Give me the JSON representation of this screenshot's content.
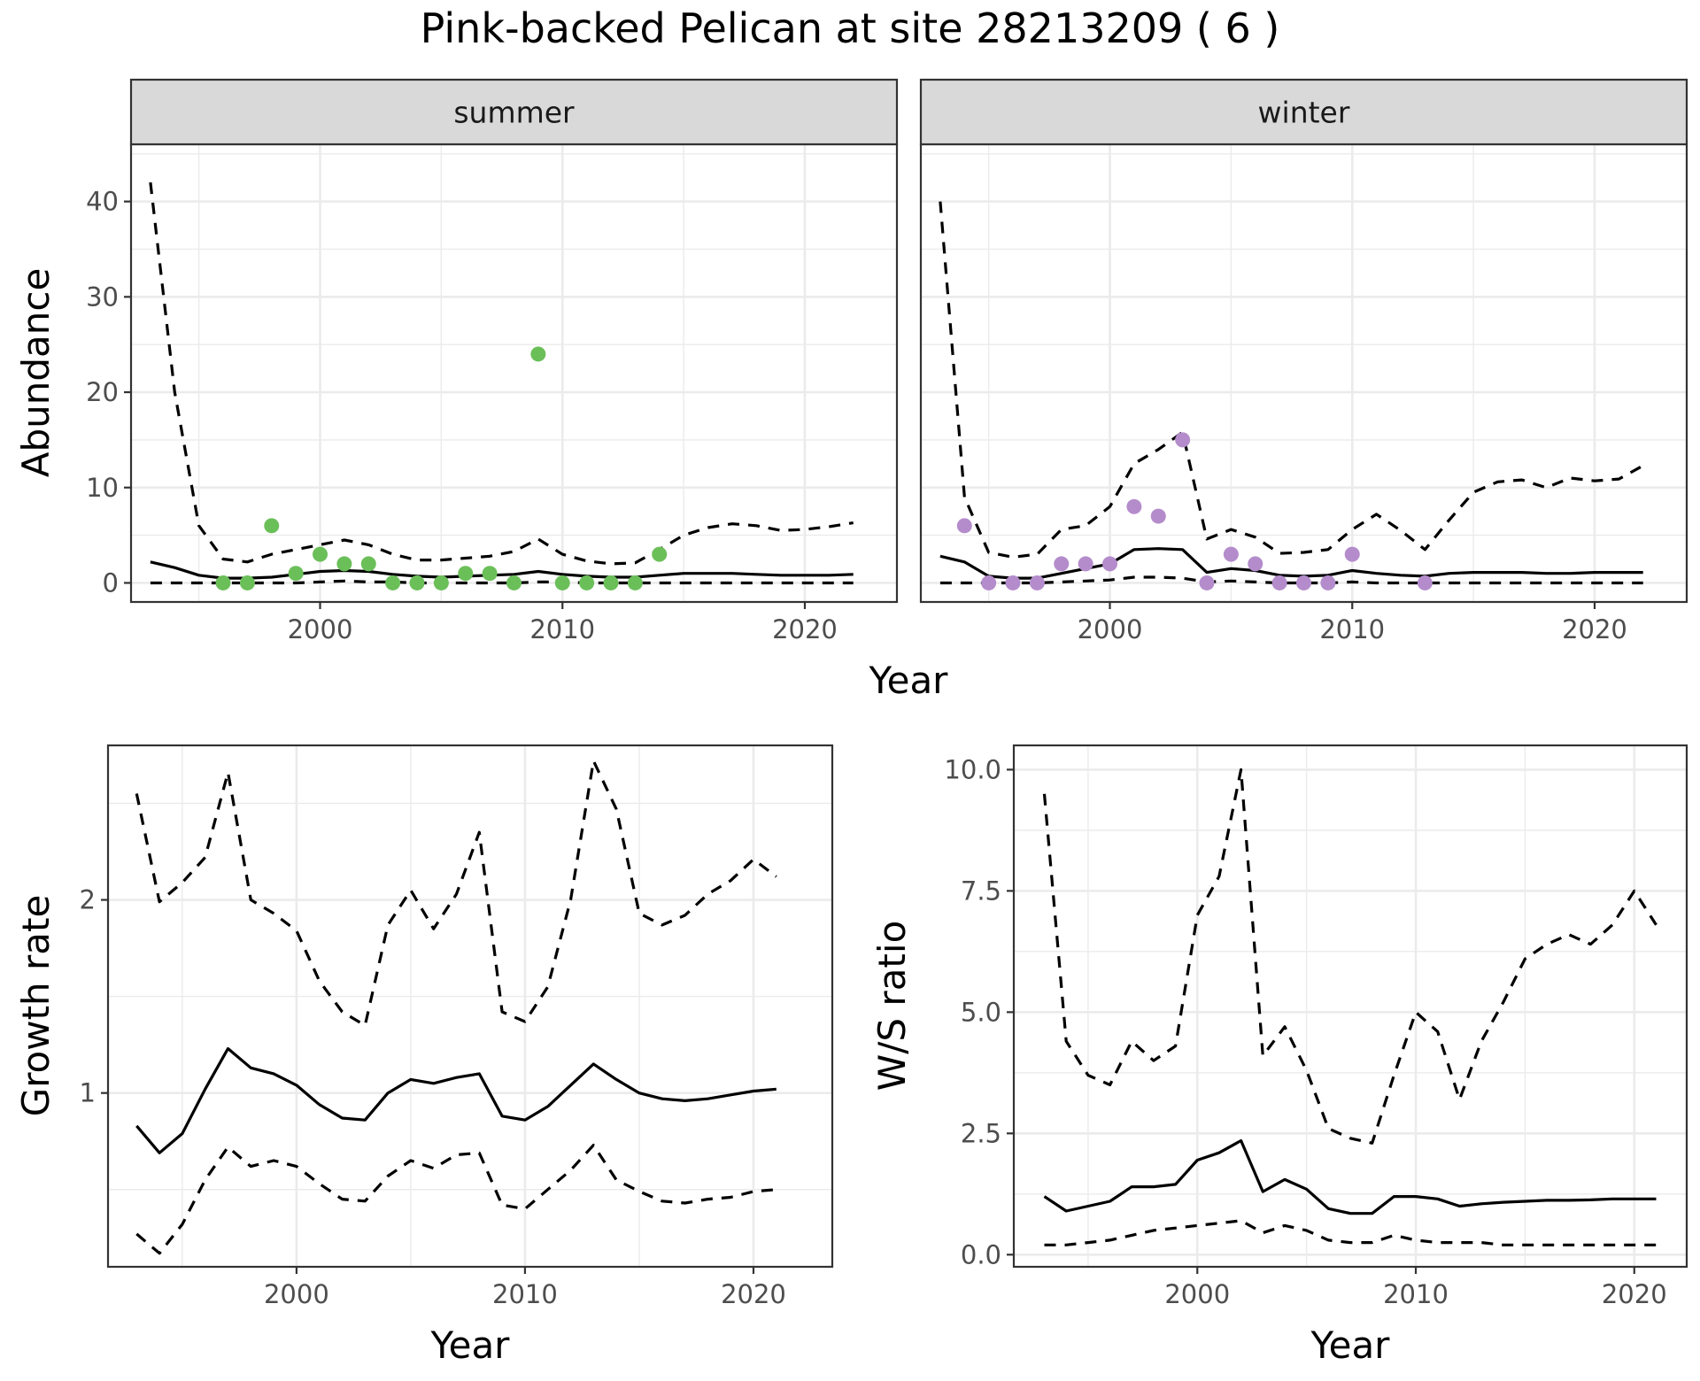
{
  "title": "Pink-backed Pelican at site 28213209 ( 6 )",
  "colors": {
    "summer": "#6bbf59",
    "winter": "#b48ccb"
  },
  "chart_data": [
    {
      "id": "summer",
      "type": "line",
      "strip": "summer",
      "xlabel": "Year",
      "ylabel": "Abundance",
      "xlim": [
        1992.2,
        2023.8
      ],
      "ylim": [
        -2,
        46
      ],
      "xticks": [
        2000,
        2010,
        2020
      ],
      "yticks": [
        0,
        10,
        20,
        30,
        40
      ],
      "x": [
        1993,
        1994,
        1995,
        1996,
        1997,
        1998,
        1999,
        2000,
        2001,
        2002,
        2003,
        2004,
        2005,
        2006,
        2007,
        2008,
        2009,
        2010,
        2011,
        2012,
        2013,
        2014,
        2015,
        2016,
        2017,
        2018,
        2019,
        2020,
        2021,
        2022
      ],
      "series": [
        {
          "role": "estimate",
          "style": "solid",
          "values": [
            2.2,
            1.6,
            0.8,
            0.5,
            0.5,
            0.6,
            0.9,
            1.2,
            1.3,
            1.2,
            0.9,
            0.7,
            0.6,
            0.7,
            0.8,
            0.9,
            1.2,
            0.9,
            0.7,
            0.6,
            0.6,
            0.8,
            1.0,
            1.0,
            1.0,
            0.9,
            0.8,
            0.8,
            0.8,
            0.9
          ]
        },
        {
          "role": "upper",
          "style": "dashed",
          "values": [
            42,
            20,
            6,
            2.5,
            2.2,
            3.0,
            3.5,
            4.0,
            4.5,
            4.0,
            3.0,
            2.4,
            2.4,
            2.6,
            2.8,
            3.3,
            4.6,
            3.0,
            2.3,
            2.0,
            2.1,
            3.5,
            5.0,
            5.8,
            6.2,
            6.0,
            5.5,
            5.6,
            5.9,
            6.3
          ]
        },
        {
          "role": "lower",
          "style": "dashed",
          "values": [
            0,
            0,
            0,
            0,
            0,
            0,
            0,
            0.1,
            0.2,
            0.1,
            0.1,
            0,
            0,
            0,
            0,
            0,
            0.1,
            0.1,
            0,
            0,
            0,
            0,
            0,
            0,
            0,
            0,
            0,
            0,
            0,
            0
          ]
        }
      ],
      "points": {
        "x": [
          1996,
          1997,
          1998,
          1999,
          2000,
          2001,
          2002,
          2003,
          2004,
          2005,
          2006,
          2007,
          2008,
          2009,
          2010,
          2011,
          2012,
          2013,
          2014
        ],
        "y": [
          0,
          0,
          6,
          1,
          3,
          2,
          2,
          0,
          0,
          0,
          1,
          1,
          0,
          24,
          0,
          0,
          0,
          0,
          3
        ]
      }
    },
    {
      "id": "winter",
      "type": "line",
      "strip": "winter",
      "xlabel": "Year",
      "ylabel": "Abundance",
      "xlim": [
        1992.2,
        2023.8
      ],
      "ylim": [
        -2,
        46
      ],
      "xticks": [
        2000,
        2010,
        2020
      ],
      "yticks": [
        0,
        10,
        20,
        30,
        40
      ],
      "x": [
        1993,
        1994,
        1995,
        1996,
        1997,
        1998,
        1999,
        2000,
        2001,
        2002,
        2003,
        2004,
        2005,
        2006,
        2007,
        2008,
        2009,
        2010,
        2011,
        2012,
        2013,
        2014,
        2015,
        2016,
        2017,
        2018,
        2019,
        2020,
        2021,
        2022
      ],
      "series": [
        {
          "role": "estimate",
          "style": "solid",
          "values": [
            2.8,
            2.2,
            0.7,
            0.5,
            0.5,
            1.0,
            1.5,
            2.0,
            3.5,
            3.6,
            3.5,
            1.1,
            1.5,
            1.3,
            0.8,
            0.7,
            0.8,
            1.3,
            1.0,
            0.8,
            0.7,
            1.0,
            1.1,
            1.1,
            1.1,
            1.0,
            1.0,
            1.1,
            1.1,
            1.1
          ]
        },
        {
          "role": "upper",
          "style": "dashed",
          "values": [
            40,
            9,
            3.2,
            2.7,
            3.0,
            5.6,
            6.0,
            8.0,
            12.5,
            14.0,
            15.8,
            4.6,
            5.6,
            4.8,
            3.1,
            3.2,
            3.5,
            5.6,
            7.2,
            5.5,
            3.5,
            6.6,
            9.5,
            10.6,
            10.8,
            10.0,
            11.0,
            10.7,
            10.9,
            12.3
          ]
        },
        {
          "role": "lower",
          "style": "dashed",
          "values": [
            0,
            0,
            0,
            0,
            0,
            0.1,
            0.2,
            0.3,
            0.6,
            0.6,
            0.5,
            0.1,
            0.2,
            0.1,
            0,
            0,
            0,
            0.1,
            0,
            0,
            0,
            0,
            0,
            0,
            0,
            0,
            0,
            0,
            0,
            0
          ]
        }
      ],
      "points": {
        "x": [
          1994,
          1995,
          1996,
          1997,
          1998,
          1999,
          2000,
          2001,
          2002,
          2003,
          2004,
          2005,
          2006,
          2007,
          2008,
          2009,
          2010,
          2013
        ],
        "y": [
          6,
          0,
          0,
          0,
          2,
          2,
          2,
          8,
          7,
          15,
          0,
          3,
          2,
          0,
          0,
          0,
          3,
          0
        ]
      }
    },
    {
      "id": "growth",
      "type": "line",
      "xlabel": "Year",
      "ylabel": "Growth rate",
      "xlim": [
        1991.75,
        2023.45
      ],
      "ylim": [
        0.1,
        2.8
      ],
      "xticks": [
        2000,
        2010,
        2020
      ],
      "yticks": [
        1,
        2
      ],
      "x": [
        1993,
        1994,
        1995,
        1996,
        1997,
        1998,
        1999,
        2000,
        2001,
        2002,
        2003,
        2004,
        2005,
        2006,
        2007,
        2008,
        2009,
        2010,
        2011,
        2012,
        2013,
        2014,
        2015,
        2016,
        2017,
        2018,
        2019,
        2020,
        2021
      ],
      "series": [
        {
          "role": "estimate",
          "style": "solid",
          "values": [
            0.83,
            0.69,
            0.79,
            1.02,
            1.23,
            1.13,
            1.1,
            1.04,
            0.94,
            0.87,
            0.86,
            1.0,
            1.07,
            1.05,
            1.08,
            1.1,
            0.88,
            0.86,
            0.93,
            1.04,
            1.15,
            1.07,
            1.0,
            0.97,
            0.96,
            0.97,
            0.99,
            1.01,
            1.02
          ]
        },
        {
          "role": "upper",
          "style": "dashed",
          "values": [
            2.55,
            1.99,
            2.09,
            2.22,
            2.66,
            2.0,
            1.93,
            1.84,
            1.58,
            1.42,
            1.35,
            1.87,
            2.05,
            1.85,
            2.03,
            2.35,
            1.42,
            1.37,
            1.55,
            2.0,
            2.72,
            2.47,
            1.93,
            1.87,
            1.92,
            2.03,
            2.1,
            2.21,
            2.12
          ]
        },
        {
          "role": "lower",
          "style": "dashed",
          "values": [
            0.27,
            0.17,
            0.32,
            0.55,
            0.72,
            0.62,
            0.65,
            0.62,
            0.53,
            0.45,
            0.44,
            0.57,
            0.65,
            0.61,
            0.68,
            0.69,
            0.42,
            0.4,
            0.5,
            0.6,
            0.73,
            0.55,
            0.49,
            0.44,
            0.43,
            0.45,
            0.46,
            0.49,
            0.5
          ]
        }
      ]
    },
    {
      "id": "ws",
      "type": "line",
      "xlabel": "Year",
      "ylabel": "W/S ratio",
      "xlim": [
        1991.6,
        2022.4
      ],
      "ylim": [
        -0.25,
        10.5
      ],
      "xticks": [
        2000,
        2010,
        2020
      ],
      "yticks": [
        0.0,
        2.5,
        5.0,
        7.5,
        10.0
      ],
      "ytick_labels": [
        "0.0",
        "2.5",
        "5.0",
        "7.5",
        "10.0"
      ],
      "x": [
        1993,
        1994,
        1995,
        1996,
        1997,
        1998,
        1999,
        2000,
        2001,
        2002,
        2003,
        2004,
        2005,
        2006,
        2007,
        2008,
        2009,
        2010,
        2011,
        2012,
        2013,
        2014,
        2015,
        2016,
        2017,
        2018,
        2019,
        2020,
        2021
      ],
      "series": [
        {
          "role": "estimate",
          "style": "solid",
          "values": [
            1.2,
            0.9,
            1.0,
            1.1,
            1.4,
            1.4,
            1.45,
            1.95,
            2.1,
            2.35,
            1.3,
            1.55,
            1.35,
            0.95,
            0.85,
            0.85,
            1.2,
            1.2,
            1.15,
            1.0,
            1.05,
            1.08,
            1.1,
            1.12,
            1.12,
            1.13,
            1.15,
            1.15,
            1.15
          ]
        },
        {
          "role": "upper",
          "style": "dashed",
          "values": [
            9.5,
            4.4,
            3.7,
            3.5,
            4.4,
            4.0,
            4.3,
            7.0,
            7.8,
            10.0,
            4.1,
            4.7,
            3.8,
            2.6,
            2.4,
            2.3,
            3.7,
            5.0,
            4.6,
            3.2,
            4.4,
            5.2,
            6.1,
            6.4,
            6.6,
            6.4,
            6.8,
            7.5,
            6.8
          ]
        },
        {
          "role": "lower",
          "style": "dashed",
          "values": [
            0.2,
            0.2,
            0.25,
            0.3,
            0.4,
            0.5,
            0.55,
            0.6,
            0.65,
            0.7,
            0.45,
            0.6,
            0.5,
            0.3,
            0.25,
            0.25,
            0.4,
            0.3,
            0.25,
            0.25,
            0.25,
            0.2,
            0.2,
            0.2,
            0.2,
            0.2,
            0.2,
            0.2,
            0.2
          ]
        }
      ]
    }
  ]
}
